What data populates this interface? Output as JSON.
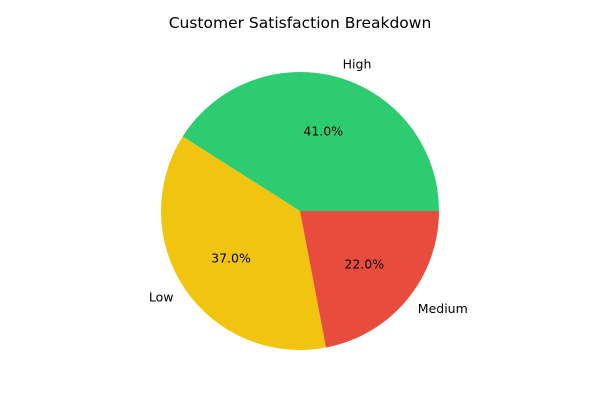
{
  "chart_data": {
    "type": "pie",
    "title": "Customer Satisfaction Breakdown",
    "slices": [
      {
        "label": "High",
        "value": 41.0,
        "pct_label": "41.0%",
        "color": "#2ecc71"
      },
      {
        "label": "Low",
        "value": 37.0,
        "pct_label": "37.0%",
        "color": "#f1c40f"
      },
      {
        "label": "Medium",
        "value": 22.0,
        "pct_label": "22.0%",
        "color": "#e74c3c"
      }
    ],
    "start_angle_deg": 0,
    "direction": "counterclockwise",
    "legend": "none"
  }
}
